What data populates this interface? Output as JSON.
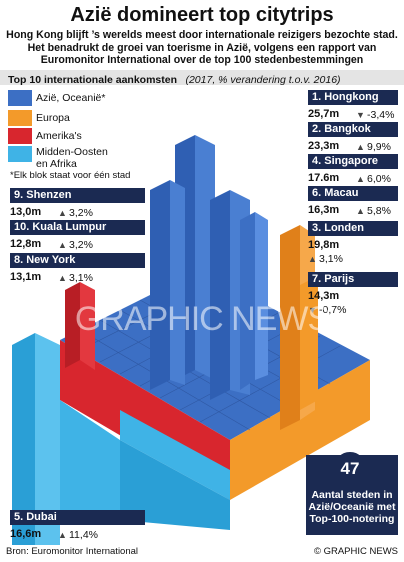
{
  "header": {
    "title": "Azië domineert top citytrips",
    "subtitle": "Hong Kong blijft ’s werelds meest door internationale reizigers bezochte stad. Het benadrukt de groei van toerisme in Azië, volgens een rapport van Euromonitor International over de top 100 stedenbestemmingen",
    "section": "Top 10 internationale aankomsten",
    "section_note": "(2017, % verandering t.o.v. 2016)"
  },
  "legend": [
    "Azië, Oceanië*",
    "Europa",
    "Amerika's",
    "Midden-Oosten en Afrika"
  ],
  "note": "*Elk blok staat voor één stad",
  "cities": [
    {
      "label": "1. Hongkong",
      "value": "25,7m",
      "change": "-3,4%"
    },
    {
      "label": "2. Bangkok",
      "value": "23,3m",
      "change": "9,9%"
    },
    {
      "label": "4. Singapore",
      "value": "17.6m",
      "change": "6,0%"
    },
    {
      "label": "6. Macau",
      "value": "16,3m",
      "change": "5,8%"
    },
    {
      "label": "3. Londen",
      "value": "19,8m",
      "change": "3,1%"
    },
    {
      "label": "7. Parijs",
      "value": "14,3m",
      "change": "-0,7%"
    },
    {
      "label": "9. Shenzen",
      "value": "13,0m",
      "change": "3,2%"
    },
    {
      "label": "10. Kuala Lumpur",
      "value": "12,8m",
      "change": "3,2%"
    },
    {
      "label": "8. New York",
      "value": "13,1m",
      "change": "3,1%"
    },
    {
      "label": "5. Dubai",
      "value": "16,6m",
      "change": "11,4%"
    }
  ],
  "watermark": "GRAPHIC NEWS",
  "callout": {
    "number": "47",
    "text": "Aantal steden in Azië/Oceanië met Top-100-notering"
  },
  "footer": {
    "source": "Bron: Euromonitor International",
    "credit": "© GRAPHIC NEWS"
  }
}
